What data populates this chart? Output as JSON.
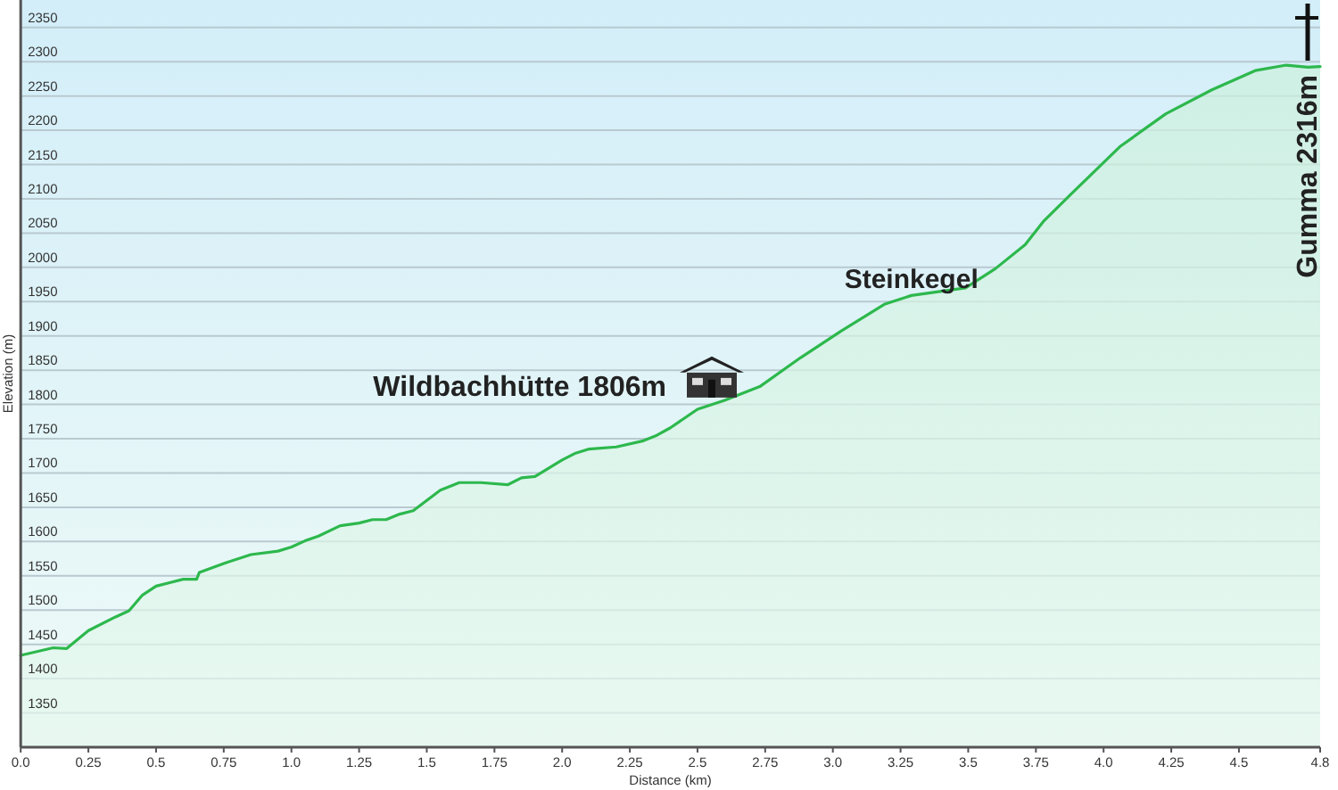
{
  "chart_data": {
    "type": "area",
    "xlabel": "Distance  (km)",
    "ylabel": "Elevation (m)",
    "xlim": [
      0,
      4.8
    ],
    "ylim": [
      1300,
      2390
    ],
    "xticks": [
      {
        "value": 0,
        "label": "0.0"
      },
      0.25,
      0.5,
      0.75,
      {
        "value": 1,
        "label": "1.0"
      },
      1.25,
      1.5,
      1.75,
      {
        "value": 2,
        "label": "2.0"
      },
      2.25,
      2.5,
      2.75,
      {
        "value": 3,
        "label": "3.0"
      },
      3.25,
      3.5,
      3.75,
      {
        "value": 4,
        "label": "4.0"
      },
      4.25,
      4.5,
      4.8
    ],
    "yticks": [
      1350,
      1400,
      1450,
      1500,
      1550,
      1600,
      1650,
      1700,
      1750,
      1800,
      1850,
      1900,
      1950,
      2000,
      2050,
      2100,
      2150,
      2200,
      2250,
      2300,
      2350
    ],
    "grid": "y",
    "series": [
      {
        "color": "#2db84d",
        "x": [
          0,
          0.12,
          0.17,
          0.25,
          0.35,
          0.4,
          0.45,
          0.5,
          0.55,
          0.6,
          0.65,
          0.66,
          0.75,
          0.85,
          0.95,
          1.0,
          1.05,
          1.1,
          1.18,
          1.25,
          1.3,
          1.35,
          1.4,
          1.45,
          1.5,
          1.55,
          1.62,
          1.7,
          1.8,
          1.85,
          1.9,
          2.0,
          2.05,
          2.1,
          2.2,
          2.3,
          2.35,
          2.4,
          2.5,
          2.6,
          2.73,
          2.88,
          3.03,
          3.19,
          3.29,
          3.49,
          3.6,
          3.71,
          3.78,
          3.88,
          4.06,
          4.23,
          4.4,
          4.56,
          4.675,
          4.755,
          4.8
        ],
        "values": [
          1434,
          1445,
          1444,
          1470,
          1490,
          1499,
          1522,
          1535,
          1540,
          1545,
          1545,
          1555,
          1568,
          1581,
          1586,
          1592,
          1601,
          1608,
          1623,
          1627,
          1632,
          1632,
          1640,
          1645,
          1660,
          1675,
          1686,
          1686,
          1683,
          1693,
          1695,
          1719,
          1729,
          1735,
          1738,
          1747,
          1755,
          1766,
          1793,
          1806,
          1826,
          1868,
          1907,
          1946,
          1959,
          1970,
          1998,
          2033,
          2068,
          2107,
          2176,
          2224,
          2259,
          2287,
          2295,
          2292,
          2293
        ]
      }
    ],
    "annotations": [
      "Wildbachhütte 1806m",
      {
        "text": "Steinkegel",
        "x": 3.29,
        "y": 1959
      },
      "Gumma 2316m"
    ]
  }
}
